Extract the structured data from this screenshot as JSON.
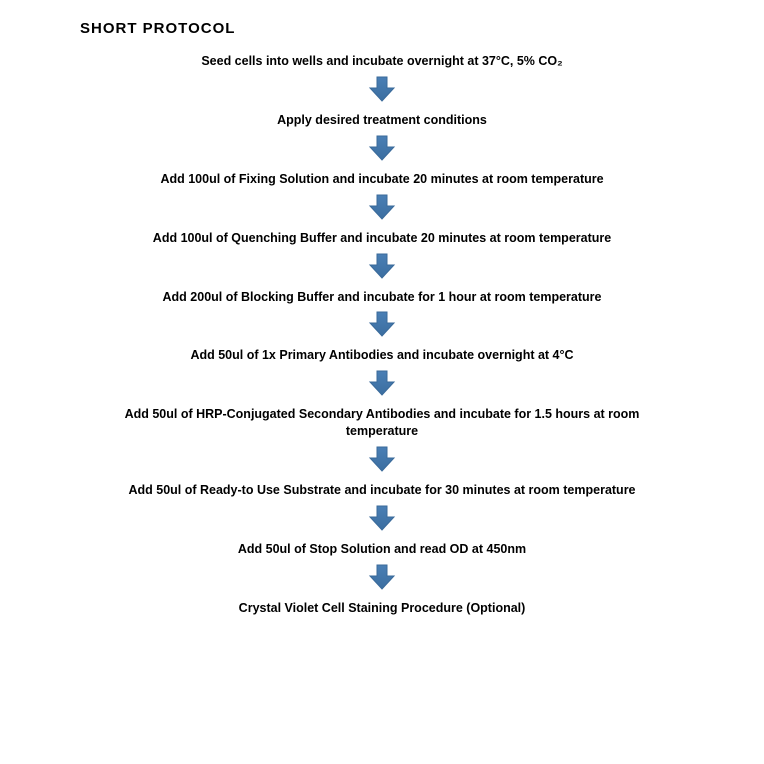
{
  "title": "SHORT PROTOCOL",
  "arrow": {
    "fill": "#4a7fb5",
    "stroke": "#3a6a9a",
    "width": 28,
    "height": 26
  },
  "text_color": "#000000",
  "background_color": "#ffffff",
  "font_family": "Arial",
  "step_fontsize": 12.5,
  "title_fontsize": 15,
  "steps": [
    {
      "text": "Seed cells into wells and incubate overnight at 37°C, 5% CO₂"
    },
    {
      "text": "Apply desired treatment conditions"
    },
    {
      "text": "Add 100ul of Fixing Solution and incubate 20 minutes at room temperature"
    },
    {
      "text": "Add 100ul of Quenching Buffer and incubate 20 minutes at room temperature"
    },
    {
      "text": "Add 200ul of Blocking Buffer and incubate for 1 hour at room temperature"
    },
    {
      "text": "Add 50ul of 1x Primary Antibodies and incubate overnight at 4°C"
    },
    {
      "text": "Add 50ul of HRP-Conjugated Secondary Antibodies and incubate for 1.5 hours at room temperature"
    },
    {
      "text": "Add 50ul of Ready-to Use Substrate and incubate for 30 minutes at room temperature"
    },
    {
      "text": "Add 50ul of Stop Solution and read OD at 450nm"
    },
    {
      "text": "Crystal Violet Cell Staining Procedure (Optional)"
    }
  ]
}
